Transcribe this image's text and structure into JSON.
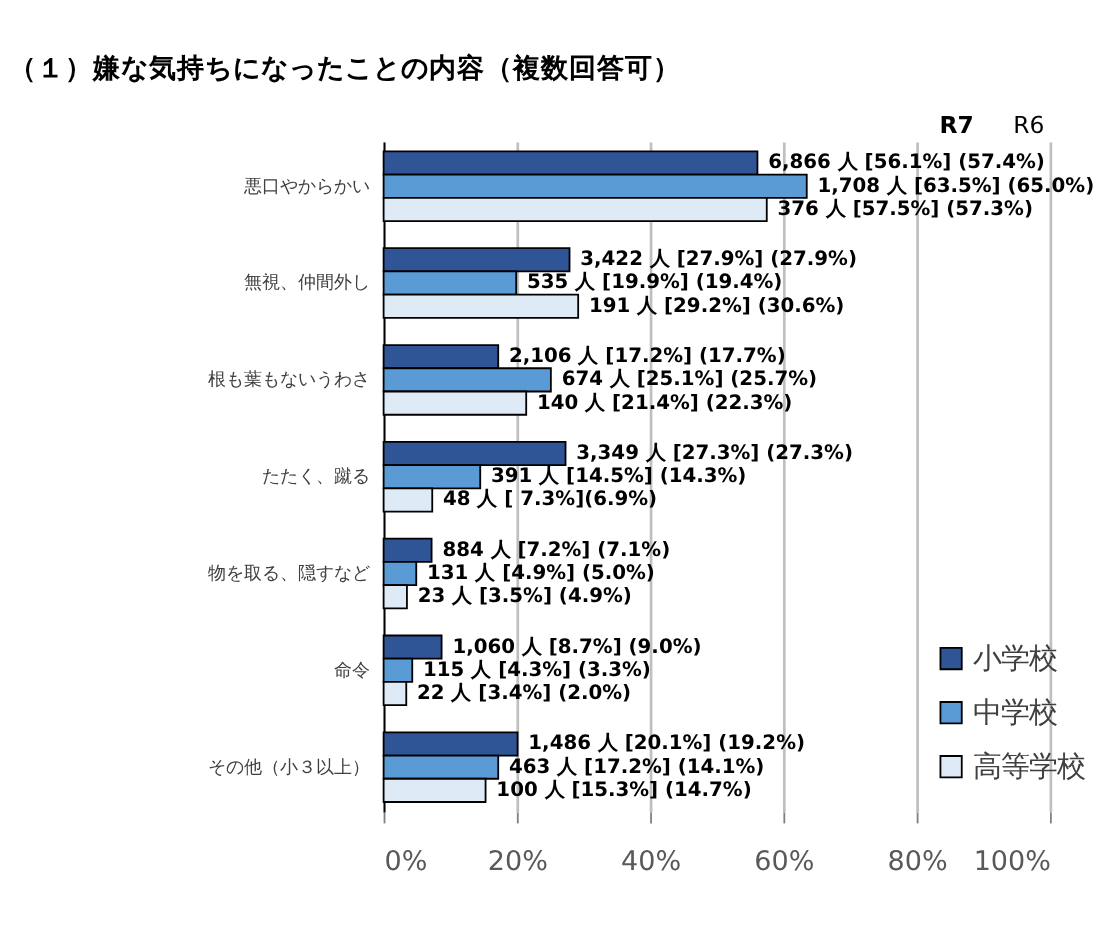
{
  "chart_data": {
    "type": "bar",
    "orientation": "horizontal",
    "title": "（１）嫌な気持ちになったことの内容（複数回答可）",
    "annotations": [
      "R7",
      "R6"
    ],
    "categories": [
      "悪口やからかい",
      "無視、仲間外し",
      "根も葉もないうわさ",
      "たたく、蹴る",
      "物を取る、隠すなど",
      "命令",
      "その他（小３以上）"
    ],
    "series": [
      {
        "name": "小学校",
        "color": "#2f5597",
        "values": [
          56.1,
          27.9,
          17.2,
          27.3,
          7.2,
          8.7,
          20.1
        ],
        "value_labels": [
          "6,866 人 [56.1%] (57.4%)",
          "3,422 人 [27.9%] (27.9%)",
          "2,106 人 [17.2%] (17.7%)",
          "3,349 人 [27.3%] (27.3%)",
          "884 人 [7.2%] (7.1%)",
          "1,060 人 [8.7%] (9.0%)",
          "1,486 人 [20.1%] (19.2%)"
        ]
      },
      {
        "name": "中学校",
        "color": "#5b9bd5",
        "values": [
          63.5,
          19.9,
          25.1,
          14.5,
          4.9,
          4.3,
          17.2
        ],
        "value_labels": [
          "1,708 人 [63.5%] (65.0%)",
          "535 人 [19.9%] (19.4%)",
          "674 人 [25.1%] (25.7%)",
          "391 人 [14.5%] (14.3%)",
          "131 人 [4.9%] (5.0%)",
          "115 人 [4.3%] (3.3%)",
          "463 人 [17.2%] (14.1%)"
        ]
      },
      {
        "name": "高等学校",
        "color": "#deebf7",
        "values": [
          57.5,
          29.2,
          21.4,
          7.3,
          3.5,
          3.4,
          15.3
        ],
        "value_labels": [
          "376 人 [57.5%] (57.3%)",
          "191 人 [29.2%] (30.6%)",
          "140 人 [21.4%] (22.3%)",
          "48 人 [ 7.3%](6.9%)",
          "23 人 [3.5%] (4.9%)",
          "22 人 [3.4%] (2.0%)",
          "100 人 [15.3%] (14.7%)"
        ]
      }
    ],
    "xlim": [
      0,
      100
    ],
    "xticks": [
      {
        "value": 0,
        "label": "0%"
      },
      {
        "value": 20,
        "label": "20%"
      },
      {
        "value": 40,
        "label": "40%"
      },
      {
        "value": 60,
        "label": "60%"
      },
      {
        "value": 80,
        "label": "80%"
      },
      {
        "value": 100,
        "label": "100%"
      }
    ],
    "grid": "x",
    "legend": "bottom right"
  }
}
